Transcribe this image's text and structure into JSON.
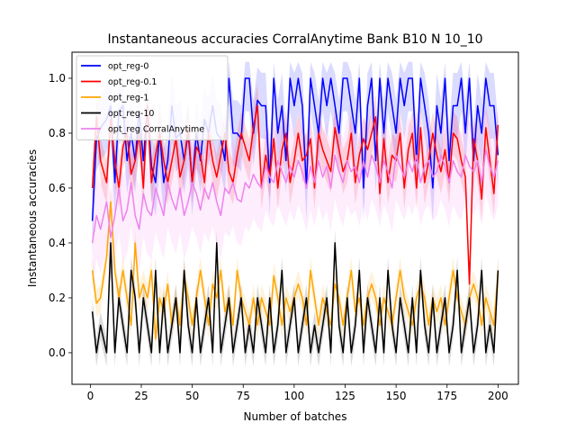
{
  "chart_data": {
    "type": "line",
    "title": "Instantaneous accuracies CorralAnytime Bank B10 N 10_10",
    "xlabel": "Number of batches",
    "ylabel": "Instantaneous accuracies",
    "xlim": [
      -9,
      210
    ],
    "ylim": [
      -0.115,
      1.095
    ],
    "xticks": [
      0,
      25,
      50,
      75,
      100,
      125,
      150,
      175,
      200
    ],
    "yticks": [
      0.0,
      0.2,
      0.4,
      0.6,
      0.8,
      1.0
    ],
    "xtick_labels": [
      "0",
      "25",
      "50",
      "75",
      "100",
      "125",
      "150",
      "175",
      "200"
    ],
    "ytick_labels": [
      "0.0",
      "0.2",
      "0.4",
      "0.6",
      "0.8",
      "1.0"
    ],
    "grid": false,
    "legend_position": "upper-left",
    "shaded_bands": true,
    "series": [
      {
        "name": "opt_reg-0",
        "color": "#0000ff",
        "x": [
          1,
          3,
          5,
          8,
          10,
          12,
          14,
          16,
          18,
          20,
          22,
          24,
          26,
          28,
          30,
          32,
          34,
          36,
          38,
          40,
          42,
          44,
          46,
          48,
          50,
          52,
          54,
          56,
          58,
          60,
          62,
          64,
          66,
          68,
          70,
          72,
          74,
          76,
          78,
          80,
          82,
          84,
          86,
          88,
          90,
          92,
          94,
          96,
          98,
          100,
          102,
          104,
          106,
          108,
          110,
          112,
          114,
          116,
          118,
          120,
          122,
          124,
          126,
          128,
          130,
          132,
          134,
          136,
          138,
          140,
          142,
          144,
          146,
          148,
          150,
          152,
          154,
          156,
          158,
          160,
          162,
          164,
          166,
          168,
          170,
          172,
          174,
          176,
          178,
          180,
          182,
          184,
          186,
          188,
          190,
          192,
          194,
          196,
          198,
          200
        ],
        "y": [
          0.48,
          0.78,
          0.82,
          0.85,
          0.9,
          0.62,
          0.88,
          0.9,
          0.7,
          0.8,
          0.7,
          0.88,
          0.7,
          0.9,
          0.68,
          0.62,
          0.8,
          0.62,
          0.7,
          0.9,
          0.78,
          0.8,
          0.7,
          0.8,
          0.62,
          0.8,
          0.7,
          0.85,
          0.8,
          0.9,
          0.8,
          0.78,
          0.7,
          1.0,
          0.8,
          0.8,
          0.78,
          1.0,
          1.0,
          0.8,
          0.92,
          0.9,
          0.9,
          0.62,
          1.0,
          0.8,
          0.9,
          0.7,
          1.0,
          0.9,
          1.0,
          0.9,
          0.6,
          1.0,
          0.9,
          0.8,
          1.0,
          0.9,
          1.0,
          0.9,
          0.8,
          1.0,
          1.0,
          0.9,
          0.8,
          1.0,
          0.6,
          0.9,
          1.0,
          0.7,
          1.0,
          0.8,
          1.0,
          0.9,
          0.8,
          1.0,
          0.9,
          1.0,
          1.0,
          0.7,
          1.0,
          0.9,
          0.8,
          0.6,
          0.9,
          0.8,
          1.0,
          0.7,
          0.9,
          0.9,
          1.0,
          0.8,
          1.0,
          0.7,
          0.9,
          0.8,
          1.0,
          0.9,
          0.9,
          0.72
        ]
      },
      {
        "name": "opt_reg-0.1",
        "color": "#ff0000",
        "x": [
          1,
          3,
          5,
          8,
          10,
          12,
          14,
          16,
          18,
          20,
          22,
          24,
          26,
          28,
          30,
          32,
          34,
          36,
          38,
          40,
          42,
          44,
          46,
          48,
          50,
          52,
          54,
          56,
          58,
          60,
          62,
          64,
          66,
          68,
          70,
          72,
          74,
          76,
          78,
          80,
          82,
          84,
          86,
          88,
          90,
          92,
          94,
          96,
          98,
          100,
          102,
          104,
          106,
          108,
          110,
          112,
          114,
          116,
          118,
          120,
          122,
          124,
          126,
          128,
          130,
          132,
          134,
          136,
          138,
          140,
          142,
          144,
          146,
          148,
          150,
          152,
          154,
          156,
          158,
          160,
          162,
          164,
          166,
          168,
          170,
          172,
          174,
          176,
          178,
          180,
          182,
          184,
          186,
          188,
          190,
          192,
          194,
          196,
          198,
          200
        ],
        "y": [
          0.6,
          0.86,
          0.7,
          0.62,
          0.85,
          0.7,
          0.6,
          0.75,
          0.8,
          0.65,
          0.7,
          0.8,
          0.6,
          0.9,
          0.62,
          0.72,
          0.8,
          0.7,
          0.62,
          0.7,
          0.78,
          0.64,
          0.7,
          0.82,
          0.62,
          0.75,
          0.72,
          0.62,
          0.8,
          0.7,
          0.64,
          0.72,
          0.8,
          0.66,
          0.62,
          0.72,
          0.8,
          0.75,
          0.7,
          0.82,
          0.9,
          0.6,
          0.72,
          0.64,
          0.78,
          0.6,
          0.74,
          0.8,
          0.62,
          0.7,
          0.8,
          0.7,
          0.72,
          0.78,
          0.6,
          0.8,
          0.74,
          0.7,
          0.66,
          0.82,
          0.74,
          0.66,
          0.7,
          0.8,
          0.62,
          0.72,
          0.78,
          0.74,
          0.8,
          0.86,
          0.58,
          0.78,
          0.62,
          0.72,
          0.7,
          0.8,
          0.6,
          0.74,
          0.8,
          0.6,
          0.82,
          0.62,
          0.7,
          0.8,
          0.72,
          0.66,
          0.74,
          0.62,
          0.8,
          0.78,
          0.7,
          0.64,
          0.25,
          0.78,
          0.7,
          0.56,
          0.82,
          0.7,
          0.58,
          0.83
        ]
      },
      {
        "name": "opt_reg-1",
        "color": "#ffa500",
        "x": [
          1,
          3,
          5,
          8,
          10,
          12,
          14,
          16,
          18,
          20,
          22,
          24,
          26,
          28,
          30,
          32,
          34,
          36,
          38,
          40,
          42,
          44,
          46,
          48,
          50,
          52,
          54,
          56,
          58,
          60,
          62,
          64,
          66,
          68,
          70,
          72,
          74,
          76,
          78,
          80,
          82,
          84,
          86,
          88,
          90,
          92,
          94,
          96,
          98,
          100,
          102,
          104,
          106,
          108,
          110,
          112,
          114,
          116,
          118,
          120,
          122,
          124,
          126,
          128,
          130,
          132,
          134,
          136,
          138,
          140,
          142,
          144,
          146,
          148,
          150,
          152,
          154,
          156,
          158,
          160,
          162,
          164,
          166,
          168,
          170,
          172,
          174,
          176,
          178,
          180,
          182,
          184,
          186,
          188,
          190,
          192,
          194,
          196,
          198,
          200
        ],
        "y": [
          0.3,
          0.18,
          0.2,
          0.35,
          0.55,
          0.3,
          0.2,
          0.3,
          0.2,
          0.1,
          0.4,
          0.2,
          0.25,
          0.2,
          0.3,
          0.05,
          0.2,
          0.15,
          0.25,
          0.1,
          0.2,
          0.1,
          0.28,
          0.2,
          0.1,
          0.2,
          0.3,
          0.2,
          0.1,
          0.25,
          0.2,
          0.3,
          0.15,
          0.2,
          0.1,
          0.3,
          0.2,
          0.15,
          0.1,
          0.2,
          0.1,
          0.2,
          0.15,
          0.1,
          0.28,
          0.2,
          0.1,
          0.2,
          0.15,
          0.2,
          0.25,
          0.2,
          0.1,
          0.3,
          0.2,
          0.1,
          0.2,
          0.15,
          0.1,
          0.25,
          0.2,
          0.1,
          0.2,
          0.3,
          0.15,
          0.2,
          0.1,
          0.2,
          0.25,
          0.2,
          0.1,
          0.2,
          0.15,
          0.1,
          0.2,
          0.3,
          0.2,
          0.15,
          0.1,
          0.2,
          0.25,
          0.2,
          0.1,
          0.2,
          0.15,
          0.2,
          0.1,
          0.2,
          0.3,
          0.2,
          0.15,
          0.1,
          0.2,
          0.25,
          0.2,
          0.1,
          0.2,
          0.15,
          0.1,
          0.3
        ]
      },
      {
        "name": "opt_reg-10",
        "color": "#000000",
        "x": [
          1,
          3,
          5,
          8,
          10,
          12,
          14,
          16,
          18,
          20,
          22,
          24,
          26,
          28,
          30,
          32,
          34,
          36,
          38,
          40,
          42,
          44,
          46,
          48,
          50,
          52,
          54,
          56,
          58,
          60,
          62,
          64,
          66,
          68,
          70,
          72,
          74,
          76,
          78,
          80,
          82,
          84,
          86,
          88,
          90,
          92,
          94,
          96,
          98,
          100,
          102,
          104,
          106,
          108,
          110,
          112,
          114,
          116,
          118,
          120,
          122,
          124,
          126,
          128,
          130,
          132,
          134,
          136,
          138,
          140,
          142,
          144,
          146,
          148,
          150,
          152,
          154,
          156,
          158,
          160,
          162,
          164,
          166,
          168,
          170,
          172,
          174,
          176,
          178,
          180,
          182,
          184,
          186,
          188,
          190,
          192,
          194,
          196,
          198,
          200
        ],
        "y": [
          0.15,
          0.0,
          0.1,
          0.0,
          0.4,
          0.0,
          0.2,
          0.1,
          0.0,
          0.3,
          0.2,
          0.0,
          0.2,
          0.1,
          0.0,
          0.3,
          0.0,
          0.2,
          0.0,
          0.1,
          0.2,
          0.0,
          0.3,
          0.1,
          0.0,
          0.2,
          0.0,
          0.1,
          0.2,
          0.0,
          0.4,
          0.0,
          0.1,
          0.2,
          0.0,
          0.1,
          0.2,
          0.0,
          0.1,
          0.0,
          0.2,
          0.1,
          0.0,
          0.2,
          0.0,
          0.1,
          0.3,
          0.0,
          0.1,
          0.2,
          0.0,
          0.1,
          0.2,
          0.0,
          0.1,
          0.0,
          0.1,
          0.2,
          0.0,
          0.4,
          0.1,
          0.0,
          0.2,
          0.0,
          0.1,
          0.3,
          0.0,
          0.2,
          0.1,
          0.0,
          0.2,
          0.0,
          0.3,
          0.1,
          0.0,
          0.2,
          0.1,
          0.0,
          0.2,
          0.0,
          0.3,
          0.1,
          0.0,
          0.2,
          0.0,
          0.1,
          0.2,
          0.0,
          0.1,
          0.3,
          0.0,
          0.1,
          0.2,
          0.0,
          0.1,
          0.3,
          0.0,
          0.1,
          0.0,
          0.3
        ]
      },
      {
        "name": "opt_reg CorralAnytime",
        "color": "#ee82ee",
        "x": [
          1,
          3,
          5,
          8,
          10,
          12,
          14,
          16,
          18,
          20,
          22,
          24,
          26,
          28,
          30,
          32,
          34,
          36,
          38,
          40,
          42,
          44,
          46,
          48,
          50,
          52,
          54,
          56,
          58,
          60,
          62,
          64,
          66,
          68,
          70,
          72,
          74,
          76,
          78,
          80,
          82,
          84,
          86,
          88,
          90,
          92,
          94,
          96,
          98,
          100,
          102,
          104,
          106,
          108,
          110,
          112,
          114,
          116,
          118,
          120,
          122,
          124,
          126,
          128,
          130,
          132,
          134,
          136,
          138,
          140,
          142,
          144,
          146,
          148,
          150,
          152,
          154,
          156,
          158,
          160,
          162,
          164,
          166,
          168,
          170,
          172,
          174,
          176,
          178,
          180,
          182,
          184,
          186,
          188,
          190,
          192,
          194,
          196,
          198,
          200
        ],
        "y": [
          0.4,
          0.5,
          0.45,
          0.55,
          0.42,
          0.5,
          0.6,
          0.48,
          0.52,
          0.62,
          0.5,
          0.45,
          0.58,
          0.52,
          0.5,
          0.6,
          0.55,
          0.5,
          0.62,
          0.56,
          0.52,
          0.6,
          0.5,
          0.55,
          0.62,
          0.58,
          0.52,
          0.6,
          0.56,
          0.62,
          0.55,
          0.5,
          0.6,
          0.58,
          0.62,
          0.56,
          0.55,
          0.62,
          0.6,
          0.65,
          0.62,
          0.6,
          0.68,
          0.64,
          0.62,
          0.7,
          0.66,
          0.62,
          0.68,
          0.64,
          0.7,
          0.66,
          0.6,
          0.68,
          0.62,
          0.7,
          0.64,
          0.68,
          0.6,
          0.72,
          0.66,
          0.62,
          0.7,
          0.66,
          0.68,
          0.62,
          0.7,
          0.64,
          0.72,
          0.68,
          0.62,
          0.7,
          0.66,
          0.6,
          0.72,
          0.68,
          0.64,
          0.7,
          0.66,
          0.72,
          0.62,
          0.68,
          0.7,
          0.64,
          0.66,
          0.72,
          0.68,
          0.62,
          0.7,
          0.66,
          0.64,
          0.72,
          0.68,
          0.66,
          0.7,
          0.62,
          0.74,
          0.68,
          0.64,
          0.7
        ]
      }
    ]
  }
}
